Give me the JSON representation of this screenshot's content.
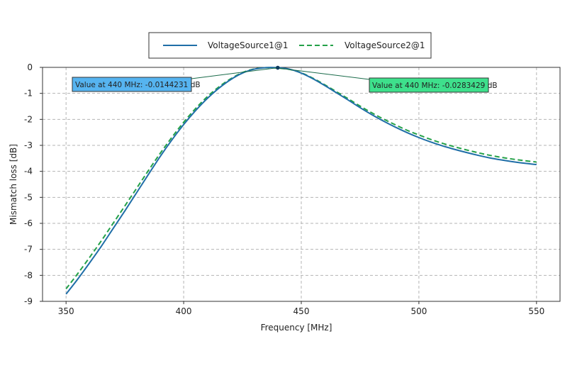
{
  "chart_data": {
    "type": "line",
    "xlabel": "Frequency [MHz]",
    "ylabel": "Mismatch loss [dB]",
    "xlim": [
      340,
      560
    ],
    "ylim": [
      -9,
      0
    ],
    "xticks": [
      350,
      400,
      450,
      500,
      550
    ],
    "yticks": [
      0,
      -1,
      -2,
      -3,
      -4,
      -5,
      -6,
      -7,
      -8,
      -9
    ],
    "grid": true,
    "legend_position": "top",
    "series": [
      {
        "name": "VoltageSource1@1",
        "color": "#1f6ea7",
        "dash": "solid",
        "x": [
          350,
          355,
          360,
          365,
          370,
          375,
          380,
          385,
          390,
          395,
          400,
          405,
          410,
          415,
          420,
          425,
          430,
          435,
          440,
          445,
          450,
          455,
          460,
          465,
          470,
          475,
          480,
          485,
          490,
          495,
          500,
          505,
          510,
          515,
          520,
          525,
          530,
          535,
          540,
          545,
          550
        ],
        "y": [
          -8.72,
          -8.14,
          -7.52,
          -6.88,
          -6.2,
          -5.52,
          -4.82,
          -4.12,
          -3.43,
          -2.79,
          -2.2,
          -1.67,
          -1.2,
          -0.8,
          -0.47,
          -0.22,
          -0.07,
          -0.01,
          -0.0144231,
          -0.07,
          -0.22,
          -0.44,
          -0.7,
          -0.98,
          -1.26,
          -1.55,
          -1.82,
          -2.07,
          -2.3,
          -2.51,
          -2.7,
          -2.87,
          -3.02,
          -3.15,
          -3.27,
          -3.38,
          -3.48,
          -3.56,
          -3.63,
          -3.69,
          -3.74
        ]
      },
      {
        "name": "VoltageSource2@1",
        "color": "#24a148",
        "dash": "dashed",
        "x": [
          350,
          355,
          360,
          365,
          370,
          375,
          380,
          385,
          390,
          395,
          400,
          405,
          410,
          415,
          420,
          425,
          430,
          435,
          440,
          445,
          450,
          455,
          460,
          465,
          470,
          475,
          480,
          485,
          490,
          495,
          500,
          505,
          510,
          515,
          520,
          525,
          530,
          535,
          540,
          545,
          550
        ],
        "y": [
          -8.52,
          -7.93,
          -7.31,
          -6.67,
          -6.0,
          -5.33,
          -4.65,
          -3.97,
          -3.31,
          -2.69,
          -2.11,
          -1.59,
          -1.13,
          -0.75,
          -0.44,
          -0.2,
          -0.06,
          -0.01,
          -0.0283429,
          -0.08,
          -0.21,
          -0.42,
          -0.67,
          -0.94,
          -1.21,
          -1.49,
          -1.75,
          -1.99,
          -2.21,
          -2.42,
          -2.6,
          -2.77,
          -2.92,
          -3.05,
          -3.17,
          -3.28,
          -3.38,
          -3.46,
          -3.53,
          -3.59,
          -3.64
        ]
      }
    ],
    "annotations": [
      {
        "text": "Value at 440 MHz: -0.0144231 dB",
        "x": 440,
        "y": -0.0144231,
        "series": 0,
        "background": "#56b4f0",
        "side": "left"
      },
      {
        "text": "Value at 440 MHz: -0.0283429 dB",
        "x": 440,
        "y": -0.0283429,
        "series": 1,
        "background": "#3ee08c",
        "side": "right"
      }
    ]
  }
}
